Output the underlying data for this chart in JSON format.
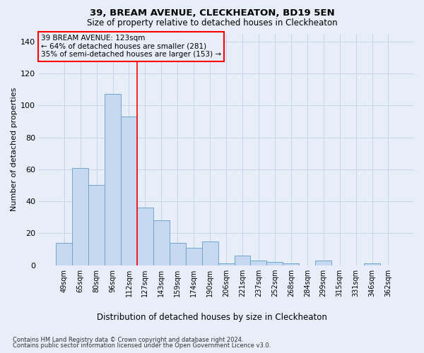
{
  "title": "39, BREAM AVENUE, CLECKHEATON, BD19 5EN",
  "subtitle": "Size of property relative to detached houses in Cleckheaton",
  "xlabel": "Distribution of detached houses by size in Cleckheaton",
  "ylabel": "Number of detached properties",
  "categories": [
    "49sqm",
    "65sqm",
    "80sqm",
    "96sqm",
    "112sqm",
    "127sqm",
    "143sqm",
    "159sqm",
    "174sqm",
    "190sqm",
    "206sqm",
    "221sqm",
    "237sqm",
    "252sqm",
    "268sqm",
    "284sqm",
    "299sqm",
    "315sqm",
    "331sqm",
    "346sqm",
    "362sqm"
  ],
  "values": [
    14,
    61,
    50,
    107,
    93,
    36,
    28,
    14,
    11,
    15,
    1,
    6,
    3,
    2,
    1,
    0,
    3,
    0,
    0,
    1,
    0
  ],
  "bar_color": "#c5d8f0",
  "bar_edge_color": "#6ea6d0",
  "bar_linewidth": 0.7,
  "vline_x": 4.5,
  "vline_color": "red",
  "vline_linewidth": 1.2,
  "annotation_line1": "39 BREAM AVENUE: 123sqm",
  "annotation_line2": "← 64% of detached houses are smaller (281)",
  "annotation_line3": "35% of semi-detached houses are larger (153) →",
  "ylim": [
    0,
    145
  ],
  "yticks": [
    0,
    20,
    40,
    60,
    80,
    100,
    120,
    140
  ],
  "grid_color": "#c8d4e8",
  "background_color": "#e8eef8",
  "footnote1": "Contains HM Land Registry data © Crown copyright and database right 2024.",
  "footnote2": "Contains public sector information licensed under the Open Government Licence v3.0."
}
